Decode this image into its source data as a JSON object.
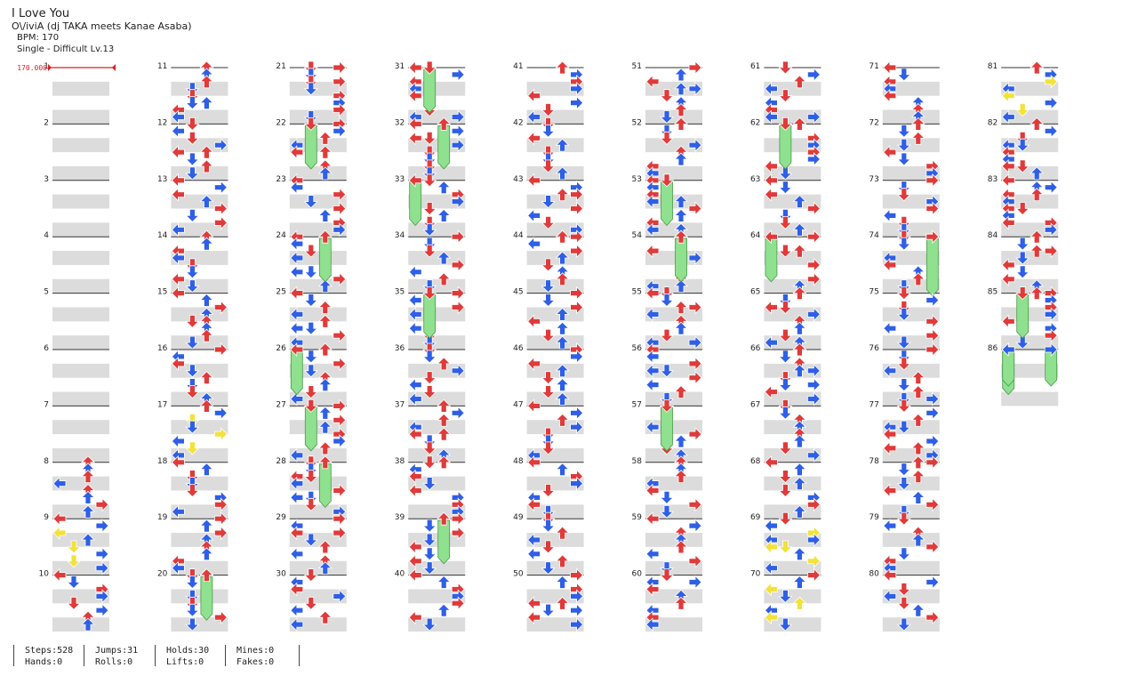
{
  "song": {
    "title": "I Love You",
    "artist": "O\\/iviA (dj TAKA meets Kanae Asaba)",
    "bpm_label": "BPM: 170",
    "difficulty_label": "Single - Difficult Lv.13"
  },
  "bpm_marker": {
    "text": "170.000",
    "measure": 1,
    "color": "#d62020"
  },
  "chart": {
    "total_measures": 86,
    "measures_per_column": 10,
    "lanes": [
      "left",
      "down",
      "up",
      "right"
    ]
  },
  "colors": {
    "quarter_arrow": "#e03a3a",
    "eighth_arrow": "#2f5fe6",
    "sixteenth_arrow": "#f2e23a",
    "hold_body": "#8fe08f",
    "lane_band": "#dcdcdc",
    "beat_line": "#333333"
  },
  "arrow_icons": {
    "left": "arrow-left-icon",
    "down": "arrow-down-icon",
    "up": "arrow-up-icon",
    "right": "arrow-right-icon"
  },
  "stats": {
    "steps": "Steps:528",
    "hands": "Hands:0",
    "jumps": "Jumps:31",
    "rolls": "Rolls:0",
    "holds": "Holds:30",
    "lifts": "Lifts:0",
    "mines": "Mines:0",
    "fakes": "Fakes:0"
  }
}
